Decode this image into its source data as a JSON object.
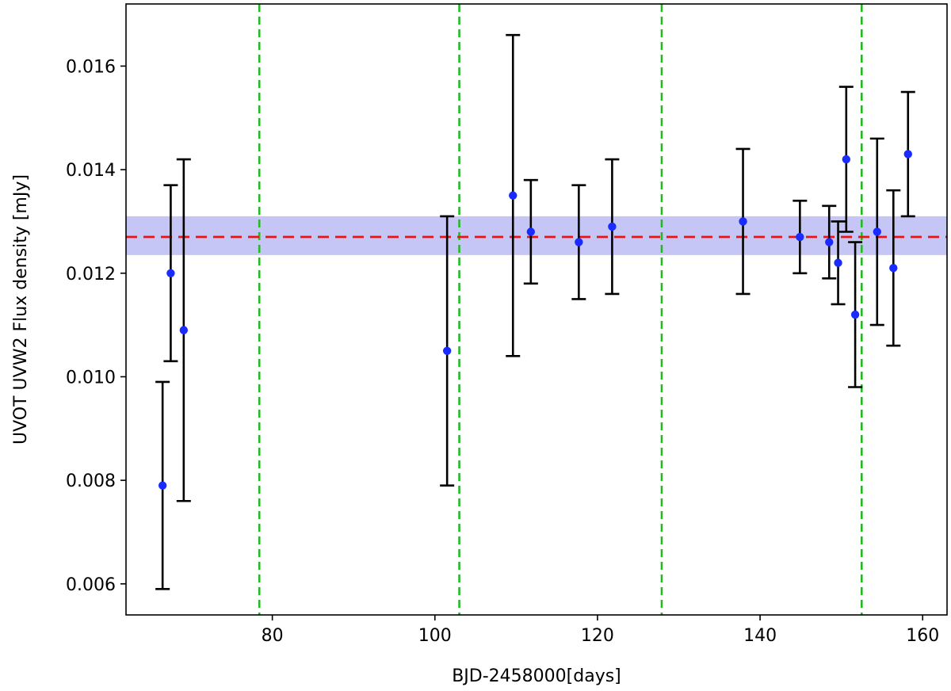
{
  "chart_data": {
    "type": "scatter",
    "title": "",
    "xlabel": "BJD-2458000[days]",
    "ylabel": "UVOT UVW2 Flux density [mJy]",
    "xlim": [
      62,
      163
    ],
    "ylim": [
      0.0054,
      0.0172
    ],
    "xticks": [
      80,
      100,
      120,
      140,
      160
    ],
    "xtick_labels": [
      "80",
      "100",
      "120",
      "140",
      "160"
    ],
    "yticks": [
      0.006,
      0.008,
      0.01,
      0.012,
      0.014,
      0.016
    ],
    "ytick_labels": [
      "0.006",
      "0.008",
      "0.010",
      "0.012",
      "0.014",
      "0.016"
    ],
    "grid": false,
    "series": [
      {
        "marker": "point",
        "color": "#1a2bff",
        "errorbar_color": "#000000",
        "points": [
          {
            "x": 66.5,
            "y": 0.0079,
            "yerr_low": 0.0059,
            "yerr_high": 0.0099
          },
          {
            "x": 67.5,
            "y": 0.012,
            "yerr_low": 0.0103,
            "yerr_high": 0.0137
          },
          {
            "x": 69.1,
            "y": 0.0109,
            "yerr_low": 0.0076,
            "yerr_high": 0.0142
          },
          {
            "x": 101.5,
            "y": 0.0105,
            "yerr_low": 0.0079,
            "yerr_high": 0.0131
          },
          {
            "x": 109.6,
            "y": 0.0135,
            "yerr_low": 0.0104,
            "yerr_high": 0.0166
          },
          {
            "x": 111.8,
            "y": 0.0128,
            "yerr_low": 0.0118,
            "yerr_high": 0.0138
          },
          {
            "x": 117.7,
            "y": 0.0126,
            "yerr_low": 0.0115,
            "yerr_high": 0.0137
          },
          {
            "x": 121.8,
            "y": 0.0129,
            "yerr_low": 0.0116,
            "yerr_high": 0.0142
          },
          {
            "x": 137.9,
            "y": 0.013,
            "yerr_low": 0.0116,
            "yerr_high": 0.0144
          },
          {
            "x": 144.9,
            "y": 0.0127,
            "yerr_low": 0.012,
            "yerr_high": 0.0134
          },
          {
            "x": 148.5,
            "y": 0.0126,
            "yerr_low": 0.0119,
            "yerr_high": 0.0133
          },
          {
            "x": 149.6,
            "y": 0.0122,
            "yerr_low": 0.0114,
            "yerr_high": 0.013
          },
          {
            "x": 150.6,
            "y": 0.0142,
            "yerr_low": 0.0128,
            "yerr_high": 0.0156
          },
          {
            "x": 151.7,
            "y": 0.0112,
            "yerr_low": 0.0098,
            "yerr_high": 0.0126
          },
          {
            "x": 154.4,
            "y": 0.0128,
            "yerr_low": 0.011,
            "yerr_high": 0.0146
          },
          {
            "x": 156.4,
            "y": 0.0121,
            "yerr_low": 0.0106,
            "yerr_high": 0.0136
          },
          {
            "x": 158.2,
            "y": 0.0143,
            "yerr_low": 0.0131,
            "yerr_high": 0.0155
          }
        ]
      }
    ],
    "mean_line": {
      "y": 0.0127,
      "color": "#ee1111",
      "style": "dashed"
    },
    "band": {
      "y_low": 0.01235,
      "y_high": 0.0131,
      "color": "#c6c6f6"
    },
    "vertical_lines": [
      {
        "x": 78.4,
        "color": "#22bb22",
        "style": "dashed"
      },
      {
        "x": 103.0,
        "color": "#22bb22",
        "style": "dashed"
      },
      {
        "x": 127.9,
        "color": "#22bb22",
        "style": "dashed"
      },
      {
        "x": 152.5,
        "color": "#22bb22",
        "style": "dashed"
      }
    ]
  }
}
